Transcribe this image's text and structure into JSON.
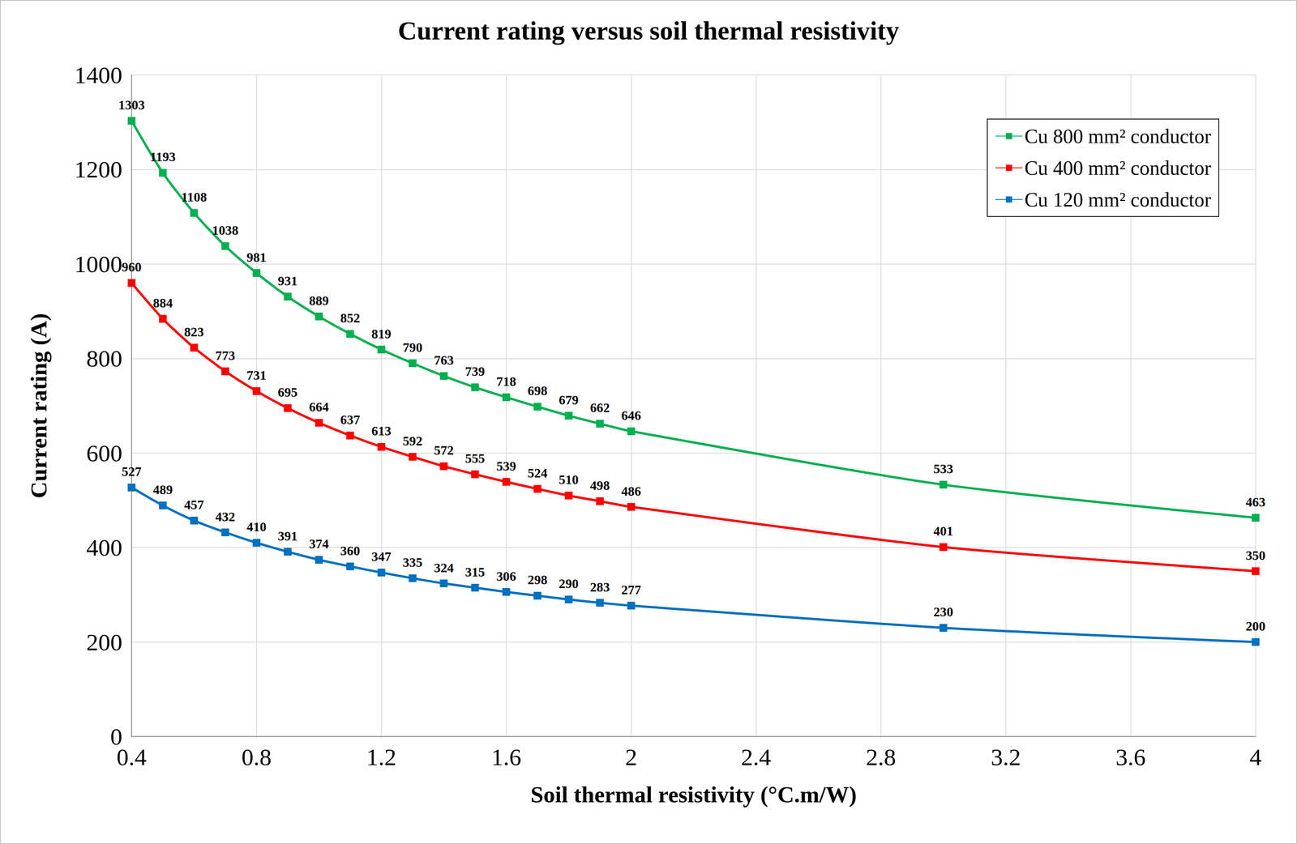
{
  "chart_data": {
    "type": "line",
    "title": "Current rating versus soil thermal resistivity",
    "xlabel": "Soil thermal resistivity (°C.m/W)",
    "ylabel": "Current rating (A)",
    "x": [
      0.4,
      0.5,
      0.6,
      0.7,
      0.8,
      0.9,
      1.0,
      1.1,
      1.2,
      1.3,
      1.4,
      1.5,
      1.6,
      1.7,
      1.8,
      1.9,
      2.0,
      3.0,
      4.0
    ],
    "series": [
      {
        "name": "Cu 800 mm² conductor",
        "color": "#00b050",
        "values": [
          1303,
          1193,
          1108,
          1038,
          981,
          931,
          889,
          852,
          819,
          790,
          763,
          739,
          718,
          698,
          679,
          662,
          646,
          533,
          463
        ]
      },
      {
        "name": "Cu 400 mm² conductor",
        "color": "#ff0000",
        "values": [
          960,
          884,
          823,
          773,
          731,
          695,
          664,
          637,
          613,
          592,
          572,
          555,
          539,
          524,
          510,
          498,
          486,
          401,
          350
        ]
      },
      {
        "name": "Cu 120 mm² conductor",
        "color": "#0070c0",
        "values": [
          527,
          489,
          457,
          432,
          410,
          391,
          374,
          360,
          347,
          335,
          324,
          315,
          306,
          298,
          290,
          283,
          277,
          230,
          200
        ]
      }
    ],
    "xlim": [
      0.4,
      4
    ],
    "xticks": [
      0.4,
      0.8,
      1.2,
      1.6,
      2,
      2.4,
      2.8,
      3.2,
      3.6,
      4
    ],
    "ylim": [
      0,
      1400
    ],
    "yticks": [
      0,
      200,
      400,
      600,
      800,
      1000,
      1200,
      1400
    ],
    "grid": true,
    "legend": "top-right",
    "data_labels": true,
    "marker": "square"
  }
}
